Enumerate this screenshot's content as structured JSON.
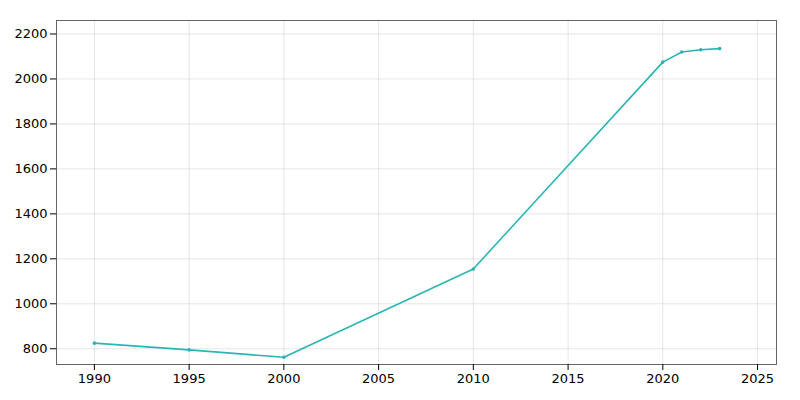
{
  "chart_data": {
    "type": "line",
    "x": [
      1990,
      1995,
      2000,
      2010,
      2020,
      2021,
      2022,
      2023
    ],
    "values": [
      825,
      795,
      762,
      1155,
      2075,
      2120,
      2130,
      2135
    ],
    "color": "#2ab5b5",
    "marker": "circle",
    "xlim": [
      1988,
      2026
    ],
    "ylim": [
      730,
      2260
    ],
    "xticks": [
      1990,
      1995,
      2000,
      2005,
      2010,
      2015,
      2020,
      2025
    ],
    "yticks": [
      800,
      1000,
      1200,
      1400,
      1600,
      1800,
      2000,
      2200
    ],
    "grid": true
  }
}
